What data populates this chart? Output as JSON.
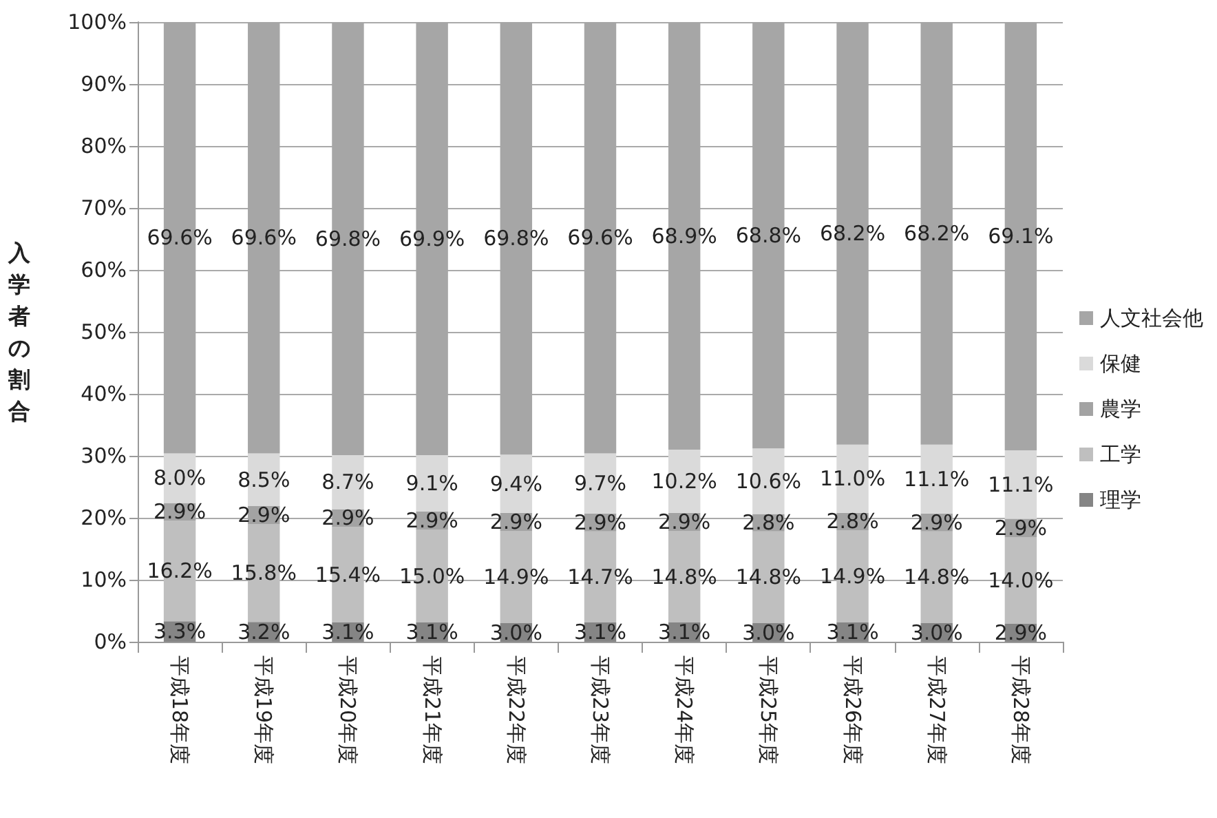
{
  "chart_data": {
    "type": "bar",
    "stacked": true,
    "ylabel": "入学者の割合",
    "categories": [
      "平成18年度",
      "平成19年度",
      "平成20年度",
      "平成21年度",
      "平成22年度",
      "平成23年度",
      "平成24年度",
      "平成25年度",
      "平成26年度",
      "平成27年度",
      "平成28年度"
    ],
    "series": [
      {
        "name": "理学",
        "color": "#858585",
        "values": [
          3.3,
          3.2,
          3.1,
          3.1,
          3.0,
          3.1,
          3.1,
          3.0,
          3.1,
          3.0,
          2.9
        ],
        "value_labels": [
          "3.3%",
          "3.2%",
          "3.1%",
          "3.1%",
          "3.0%",
          "3.1%",
          "3.1%",
          "3.0%",
          "3.1%",
          "3.0%",
          "2.9%"
        ]
      },
      {
        "name": "工学",
        "color": "#bfbfbf",
        "values": [
          16.2,
          15.8,
          15.4,
          15.0,
          14.9,
          14.7,
          14.8,
          14.8,
          14.9,
          14.8,
          14.0
        ],
        "value_labels": [
          "16.2%",
          "15.8%",
          "15.4%",
          "15.0%",
          "14.9%",
          "14.7%",
          "14.8%",
          "14.8%",
          "14.9%",
          "14.8%",
          "14.0%"
        ]
      },
      {
        "name": "農学",
        "color": "#a3a3a3",
        "values": [
          2.9,
          2.9,
          2.9,
          2.9,
          2.9,
          2.9,
          2.9,
          2.8,
          2.8,
          2.9,
          2.9
        ],
        "value_labels": [
          "2.9%",
          "2.9%",
          "2.9%",
          "2.9%",
          "2.9%",
          "2.9%",
          "2.9%",
          "2.8%",
          "2.8%",
          "2.9%",
          "2.9%"
        ]
      },
      {
        "name": "保健",
        "color": "#dadada",
        "values": [
          8.0,
          8.5,
          8.7,
          9.1,
          9.4,
          9.7,
          10.2,
          10.6,
          11.0,
          11.1,
          11.1
        ],
        "value_labels": [
          "8.0%",
          "8.5%",
          "8.7%",
          "9.1%",
          "9.4%",
          "9.7%",
          "10.2%",
          "10.6%",
          "11.0%",
          "11.1%",
          "11.1%"
        ]
      },
      {
        "name": "人文社会他",
        "color": "#a6a6a6",
        "values": [
          69.6,
          69.6,
          69.8,
          69.9,
          69.8,
          69.6,
          68.9,
          68.8,
          68.2,
          68.2,
          69.1
        ],
        "value_labels": [
          "69.6%",
          "69.6%",
          "69.8%",
          "69.9%",
          "69.8%",
          "69.6%",
          "68.9%",
          "68.8%",
          "68.2%",
          "68.2%",
          "69.1%"
        ]
      }
    ],
    "ylim": [
      0,
      100
    ],
    "yticks": [
      {
        "value": 0,
        "label": "0%"
      },
      {
        "value": 10,
        "label": "10%"
      },
      {
        "value": 20,
        "label": "20%"
      },
      {
        "value": 30,
        "label": "30%"
      },
      {
        "value": 40,
        "label": "40%"
      },
      {
        "value": 50,
        "label": "50%"
      },
      {
        "value": 60,
        "label": "60%"
      },
      {
        "value": 70,
        "label": "70%"
      },
      {
        "value": 80,
        "label": "80%"
      },
      {
        "value": 90,
        "label": "90%"
      },
      {
        "value": 100,
        "label": "100%"
      }
    ],
    "grid": "y",
    "legend": "right"
  }
}
